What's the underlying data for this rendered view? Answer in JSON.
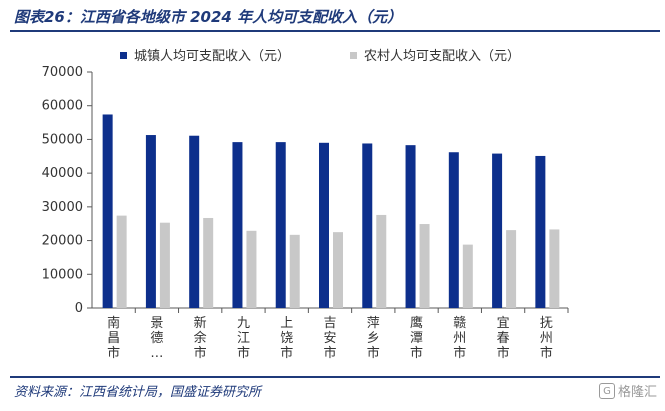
{
  "title": "图表26：江西省各地级市 2024 年人均可支配收入（元）",
  "source": "资料来源：江西省统计局，国盛证券研究所",
  "watermark": {
    "icon": "G",
    "text": "格隆汇"
  },
  "colors": {
    "urban": "#0d2f8c",
    "rural": "#c8c8c8",
    "axis": "#595959",
    "title": "#1f3a7a"
  },
  "chart_data": {
    "type": "bar",
    "categories": [
      "南昌市",
      "景德…",
      "新余市",
      "九江市",
      "上饶市",
      "吉安市",
      "萍乡市",
      "鹰潭市",
      "赣州市",
      "宜春市",
      "抚州市"
    ],
    "series": [
      {
        "name": "城镇人均可支配收入（元）",
        "values": [
          57400,
          51300,
          51100,
          49200,
          49200,
          49000,
          48800,
          48300,
          46200,
          45800,
          45100
        ]
      },
      {
        "name": "农村人均可支配收入（元）",
        "values": [
          27400,
          25300,
          26700,
          22900,
          21700,
          22500,
          27600,
          24900,
          18800,
          23100,
          23300
        ]
      }
    ],
    "ylim": [
      0,
      70000
    ],
    "yticks": [
      "0",
      "10000",
      "20000",
      "30000",
      "40000",
      "50000",
      "60000",
      "70000"
    ],
    "legend": "top"
  }
}
